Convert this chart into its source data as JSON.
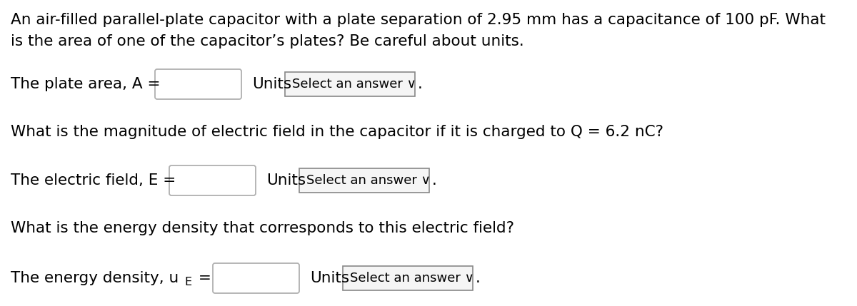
{
  "bg_color": "#ffffff",
  "font_family": "DejaVu Sans",
  "paragraph1_line1": "An air-filled parallel-plate capacitor with a plate separation of 2.95 mm has a capacitance of 100 pF. What",
  "paragraph1_line2": "is the area of one of the capacitor’s plates? Be careful about units.",
  "row1_label": "The plate area, A =",
  "row2_question": "What is the magnitude of electric field in the capacitor if it is charged to Q = 6.2 nC?",
  "row2_label": "The electric field, E =",
  "row3_question": "What is the energy density that corresponds to this electric field?",
  "row3_label_pre": "The energy density, u",
  "row3_label_sub": "E",
  "row3_label_post": " =",
  "units_text": "Units",
  "dropdown_text": "Select an answer ∨",
  "period": ".",
  "text_color": "#000000",
  "input_box_edge_color": "#b0b0b0",
  "input_box_face_color": "#ffffff",
  "dropdown_edge_color": "#888888",
  "dropdown_face_color": "#f5f5f5",
  "font_size_main": 15.5,
  "font_size_dropdown": 13.0,
  "font_size_sub": 11.5
}
